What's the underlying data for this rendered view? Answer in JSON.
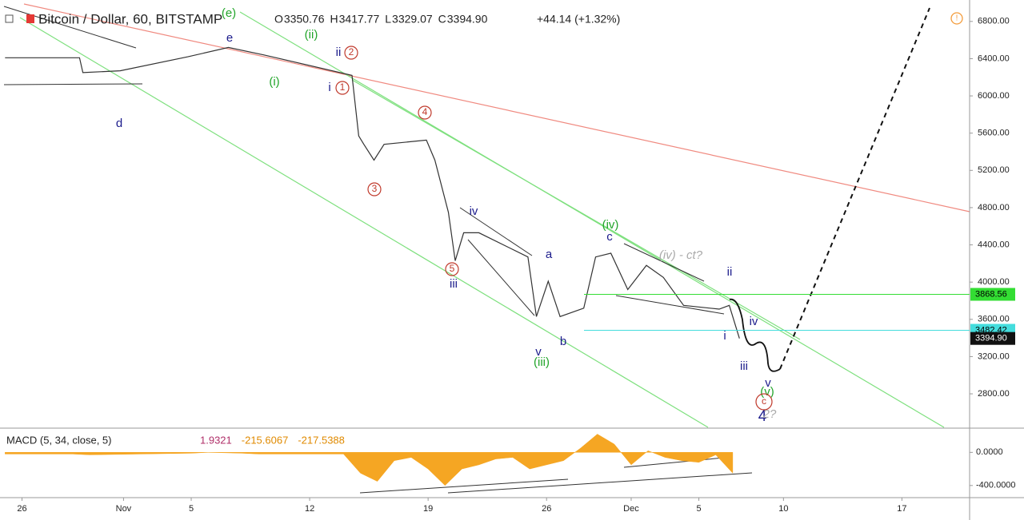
{
  "chart_data": {
    "type": "line",
    "title": "Bitcoin / Dollar, 60, BITSTAMP",
    "ohlc": [
      {
        "label": "O",
        "value": "3350.76"
      },
      {
        "label": "H",
        "value": "3417.77"
      },
      {
        "label": "L",
        "value": "3329.07"
      },
      {
        "label": "C",
        "value": "3394.90"
      }
    ],
    "change": "+44.14 (+1.32%)",
    "color": "#333333",
    "x": [
      -1,
      3.4,
      3.6,
      5.8,
      9.8,
      12.2,
      14.3,
      19.5,
      19.9,
      20.2,
      20.8,
      21.4,
      23.9,
      24.4,
      25.2,
      25.6,
      26.1,
      27.0,
      29.9,
      30.4,
      31.1,
      31.8,
      33.2,
      33.9,
      34.8,
      35.8,
      36.9,
      37.9,
      39.1,
      41.2,
      41.8,
      42.4
    ],
    "values": [
      6410,
      6410,
      6250,
      6270,
      6420,
      6520,
      6440,
      6220,
      5570,
      5480,
      5310,
      5480,
      5525,
      5310,
      4750,
      4230,
      4530,
      4530,
      4270,
      3630,
      4010,
      3630,
      3720,
      4270,
      4310,
      3920,
      4180,
      4050,
      3750,
      3710,
      3750,
      3394.9
    ],
    "xlim": [
      -1.3,
      56
    ],
    "xticks": [
      {
        "value": 0,
        "label": "26"
      },
      {
        "value": 6,
        "label": "Nov"
      },
      {
        "value": 10,
        "label": "5"
      },
      {
        "value": 17,
        "label": "12"
      },
      {
        "value": 24,
        "label": "19"
      },
      {
        "value": 31,
        "label": "26"
      },
      {
        "value": 36,
        "label": "Dec"
      },
      {
        "value": 40,
        "label": "5"
      },
      {
        "value": 45,
        "label": "10"
      },
      {
        "value": 52,
        "label": "17"
      }
    ],
    "ylim": [
      2440,
      7030
    ],
    "yticks": [
      {
        "value": 2800,
        "label": "2800.00"
      },
      {
        "value": 3200,
        "label": "3200.00"
      },
      {
        "value": 3600,
        "label": "3600.00"
      },
      {
        "value": 4000,
        "label": "4000.00"
      },
      {
        "value": 4400,
        "label": "4400.00"
      },
      {
        "value": 4800,
        "label": "4800.00"
      },
      {
        "value": 5200,
        "label": "5200.00"
      },
      {
        "value": 5600,
        "label": "5600.00"
      },
      {
        "value": 6000,
        "label": "6000.00"
      },
      {
        "value": 6400,
        "label": "6400.00"
      },
      {
        "value": 6800,
        "label": "6800.00"
      }
    ],
    "price_labels": [
      {
        "value": 3868.56,
        "color": "#33dd33",
        "text_color": "#000000"
      },
      {
        "value": 3482.42,
        "color": "#44dddd",
        "text_color": "#000000"
      },
      {
        "value": 3394.9,
        "label": "3394.90",
        "color": "#111111",
        "text_color": "#ffffff"
      }
    ],
    "annotations": [
      {
        "text": "(e)",
        "color": "#22a52a"
      },
      {
        "text": "e",
        "color": "#1c1c8c"
      },
      {
        "text": "(ii)",
        "color": "#22a52a"
      },
      {
        "text": "ii",
        "color": "#1c1c8c"
      },
      {
        "text": "2",
        "color": "#c0392b",
        "circled": true
      },
      {
        "text": "(i)",
        "color": "#22a52a"
      },
      {
        "text": "i",
        "color": "#1c1c8c"
      },
      {
        "text": "1",
        "color": "#c0392b",
        "circled": true
      },
      {
        "text": "d",
        "color": "#1c1c8c"
      },
      {
        "text": "4",
        "color": "#c0392b",
        "circled": true
      },
      {
        "text": "3",
        "color": "#c0392b",
        "circled": true
      },
      {
        "text": "iv",
        "color": "#1c1c8c"
      },
      {
        "text": "5",
        "color": "#c0392b",
        "circled": true
      },
      {
        "text": "iii",
        "color": "#1c1c8c"
      },
      {
        "text": "a",
        "color": "#1c1c8c"
      },
      {
        "text": "(iv)",
        "color": "#22a52a"
      },
      {
        "text": "c",
        "color": "#1c1c8c"
      },
      {
        "text": "(iv) - ct?",
        "color": "#aaaaaa"
      },
      {
        "text": "ii",
        "color": "#1c1c8c"
      },
      {
        "text": "iv",
        "color": "#1c1c8c"
      },
      {
        "text": "i",
        "color": "#1c1c8c"
      },
      {
        "text": "v",
        "color": "#1c1c8c"
      },
      {
        "text": "b",
        "color": "#1c1c8c"
      },
      {
        "text": "(iii)",
        "color": "#22a52a"
      },
      {
        "text": "iii",
        "color": "#1c1c8c"
      },
      {
        "text": "v",
        "color": "#1c1c8c"
      },
      {
        "text": "(v)",
        "color": "#22a52a"
      },
      {
        "text": "c",
        "color": "#c0392b",
        "circled": true
      },
      {
        "text": "4",
        "color": "#1c1c8c"
      },
      {
        "text": "2?",
        "color": "#aaaaaa"
      }
    ],
    "macd": {
      "title": "MACD (5, 34, close, 5)",
      "readouts": [
        {
          "text": "1.9321",
          "color": "#b0306a"
        },
        {
          "text": "-215.6067",
          "color": "#e08a00"
        },
        {
          "text": "-217.5388",
          "color": "#e08a00"
        }
      ],
      "color": "#f5a623",
      "x": [
        -1,
        3,
        4,
        7,
        10,
        11,
        13,
        14,
        19,
        20,
        21,
        22,
        23,
        24,
        25,
        26,
        27,
        28,
        29,
        30,
        31,
        32,
        33,
        34,
        35,
        36,
        37,
        38,
        39,
        40,
        41,
        42
      ],
      "values": [
        -20,
        -20,
        -30,
        -20,
        -10,
        0,
        -10,
        -20,
        -20,
        -250,
        -350,
        -100,
        -60,
        -200,
        -400,
        -200,
        -150,
        -80,
        -60,
        -200,
        -150,
        -100,
        50,
        220,
        100,
        -150,
        20,
        -60,
        -100,
        -120,
        -30,
        -250
      ],
      "ylim": [
        -537,
        283
      ],
      "yticks": [
        {
          "value": 0,
          "label": "0.0000"
        },
        {
          "value": -400,
          "label": "-400.0000"
        }
      ]
    }
  }
}
